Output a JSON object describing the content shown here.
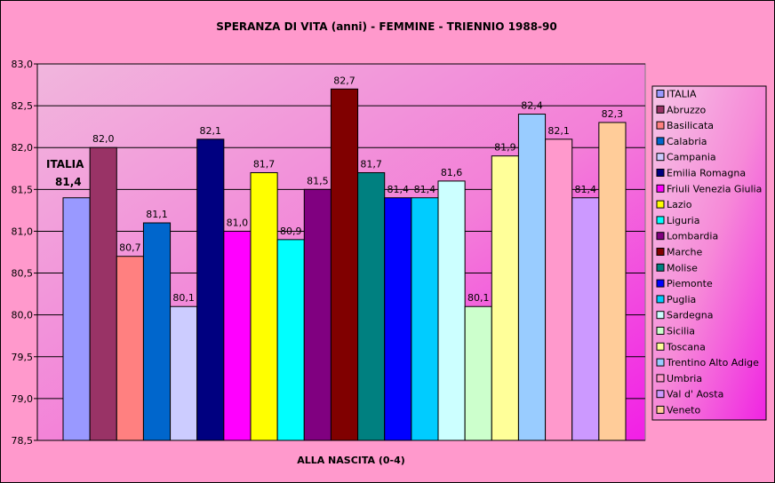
{
  "chart_data": {
    "type": "bar",
    "title": "SPERANZA DI VITA (anni) - FEMMINE - TRIENNIO 1988-90",
    "xlabel": "ALLA NASCITA (0-4)",
    "ylabel": "",
    "ylim": [
      78.5,
      83.0
    ],
    "ytick_step": 0.5,
    "yticks": [
      "78,5",
      "79,0",
      "79,5",
      "80,0",
      "80,5",
      "81,0",
      "81,5",
      "82,0",
      "82,5",
      "83,0"
    ],
    "grid": true,
    "legend_position": "right",
    "callout": {
      "line1": "ITALIA",
      "line2": "81,4"
    },
    "series": [
      {
        "name": "ITALIA",
        "value": 81.4,
        "label": "",
        "color": "#9999ff"
      },
      {
        "name": "Abruzzo",
        "value": 82.0,
        "label": "82,0",
        "color": "#993366"
      },
      {
        "name": "Basilicata",
        "value": 80.7,
        "label": "80,7",
        "color": "#ff8080"
      },
      {
        "name": "Calabria",
        "value": 81.1,
        "label": "81,1",
        "color": "#0066cc"
      },
      {
        "name": "Campania",
        "value": 80.1,
        "label": "80,1",
        "color": "#ccccff"
      },
      {
        "name": "Emilia Romagna",
        "value": 82.1,
        "label": "82,1",
        "color": "#000080"
      },
      {
        "name": "Friuli Venezia Giulia",
        "value": 81.0,
        "label": "81,0",
        "color": "#ff00ff"
      },
      {
        "name": "Lazio",
        "value": 81.7,
        "label": "81,7",
        "color": "#ffff00"
      },
      {
        "name": "Liguria",
        "value": 80.9,
        "label": "80,9",
        "color": "#00ffff"
      },
      {
        "name": "Lombardia",
        "value": 81.5,
        "label": "81,5",
        "color": "#800080"
      },
      {
        "name": "Marche",
        "value": 82.7,
        "label": "82,7",
        "color": "#800000"
      },
      {
        "name": "Molise",
        "value": 81.7,
        "label": "81,7",
        "color": "#008080"
      },
      {
        "name": "Piemonte",
        "value": 81.4,
        "label": "81,4",
        "color": "#0000ff"
      },
      {
        "name": "Puglia",
        "value": 81.4,
        "label": "81,4",
        "color": "#00ccff"
      },
      {
        "name": "Sardegna",
        "value": 81.6,
        "label": "81,6",
        "color": "#ccffff"
      },
      {
        "name": "Sicilia",
        "value": 80.1,
        "label": "80,1",
        "color": "#ccffcc"
      },
      {
        "name": "Toscana",
        "value": 81.9,
        "label": "81,9",
        "color": "#ffff99"
      },
      {
        "name": "Trentino Alto Adige",
        "value": 82.4,
        "label": "82,4",
        "color": "#99ccff"
      },
      {
        "name": "Umbria",
        "value": 82.1,
        "label": "82,1",
        "color": "#ff99cc"
      },
      {
        "name": "Val d' Aosta",
        "value": 81.4,
        "label": "81,4",
        "color": "#cc99ff"
      },
      {
        "name": "Veneto",
        "value": 82.3,
        "label": "82,3",
        "color": "#ffcc99"
      }
    ]
  }
}
